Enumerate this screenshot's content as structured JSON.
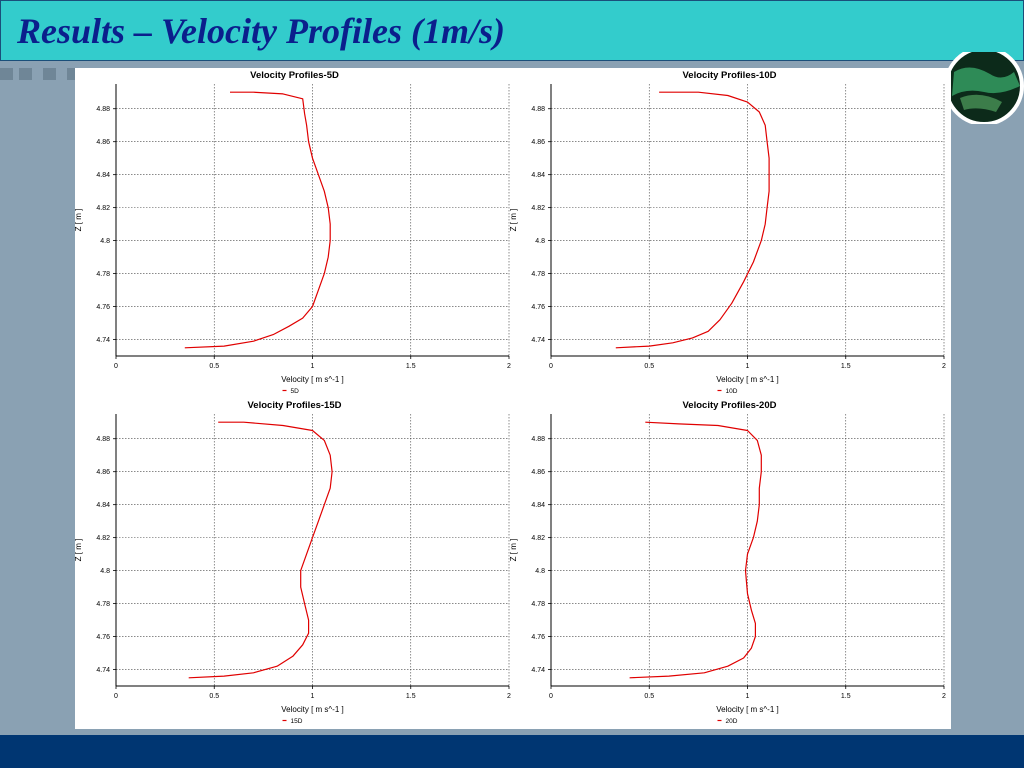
{
  "slide": {
    "title": "Results – Velocity Profiles (1m/s)"
  },
  "colors": {
    "title_bar": "#33cccc",
    "title_text": "#0b1f8c",
    "background": "#8aa1b3",
    "bottom_bar": "#003672",
    "series": "#e00000"
  },
  "chart_data": [
    {
      "type": "line",
      "title": "Velocity Profiles-5D",
      "xlabel": "Velocity [ m s^-1 ]",
      "ylabel": "Z [ m ]",
      "xlim": [
        0,
        2
      ],
      "ylim": [
        4.73,
        4.895
      ],
      "xticks": [
        0,
        0.5,
        1,
        1.5,
        2
      ],
      "xtick_labels": [
        "0",
        "0.5",
        "1",
        "1.5",
        "2"
      ],
      "yticks": [
        4.74,
        4.76,
        4.78,
        4.8,
        4.82,
        4.84,
        4.86,
        4.88
      ],
      "ytick_labels": [
        "4.74",
        "4.76",
        "4.78",
        "4.8",
        "4.82",
        "4.84",
        "4.86",
        "4.88"
      ],
      "grid": true,
      "legend_position": "bottom",
      "series": [
        {
          "name": "5D",
          "x": [
            0.35,
            0.55,
            0.7,
            0.8,
            0.88,
            0.95,
            1.0,
            1.03,
            1.06,
            1.08,
            1.09,
            1.09,
            1.08,
            1.06,
            1.03,
            1.0,
            0.98,
            0.97,
            0.96,
            0.95,
            0.85,
            0.7,
            0.58
          ],
          "y": [
            4.735,
            4.736,
            4.739,
            4.743,
            4.748,
            4.753,
            4.76,
            4.77,
            4.78,
            4.79,
            4.8,
            4.81,
            4.82,
            4.83,
            4.84,
            4.85,
            4.86,
            4.87,
            4.877,
            4.886,
            4.889,
            4.89,
            4.89
          ]
        }
      ]
    },
    {
      "type": "line",
      "title": "Velocity Profiles-10D",
      "xlabel": "Velocity [ m s^-1 ]",
      "ylabel": "Z [ m ]",
      "xlim": [
        0,
        2
      ],
      "ylim": [
        4.73,
        4.895
      ],
      "xticks": [
        0,
        0.5,
        1,
        1.5,
        2
      ],
      "xtick_labels": [
        "0",
        "0.5",
        "1",
        "1.5",
        "2"
      ],
      "yticks": [
        4.74,
        4.76,
        4.78,
        4.8,
        4.82,
        4.84,
        4.86,
        4.88
      ],
      "ytick_labels": [
        "4.74",
        "4.76",
        "4.78",
        "4.8",
        "4.82",
        "4.84",
        "4.86",
        "4.88"
      ],
      "grid": true,
      "legend_position": "bottom",
      "series": [
        {
          "name": "10D",
          "x": [
            0.33,
            0.5,
            0.62,
            0.72,
            0.8,
            0.86,
            0.92,
            0.98,
            1.03,
            1.07,
            1.09,
            1.1,
            1.11,
            1.11,
            1.11,
            1.1,
            1.09,
            1.06,
            1.0,
            0.9,
            0.75,
            0.55
          ],
          "y": [
            4.735,
            4.736,
            4.738,
            4.741,
            4.745,
            4.752,
            4.762,
            4.775,
            4.787,
            4.8,
            4.81,
            4.82,
            4.83,
            4.84,
            4.85,
            4.86,
            4.87,
            4.878,
            4.884,
            4.888,
            4.89,
            4.89
          ]
        }
      ]
    },
    {
      "type": "line",
      "title": "Velocity Profiles-15D",
      "xlabel": "Velocity [ m s^-1 ]",
      "ylabel": "Z [ m ]",
      "xlim": [
        0,
        2
      ],
      "ylim": [
        4.73,
        4.895
      ],
      "xticks": [
        0,
        0.5,
        1,
        1.5,
        2
      ],
      "xtick_labels": [
        "0",
        "0.5",
        "1",
        "1.5",
        "2"
      ],
      "yticks": [
        4.74,
        4.76,
        4.78,
        4.8,
        4.82,
        4.84,
        4.86,
        4.88
      ],
      "ytick_labels": [
        "4.74",
        "4.76",
        "4.78",
        "4.8",
        "4.82",
        "4.84",
        "4.86",
        "4.88"
      ],
      "grid": true,
      "legend_position": "bottom",
      "series": [
        {
          "name": "15D",
          "x": [
            0.37,
            0.55,
            0.7,
            0.82,
            0.9,
            0.95,
            0.98,
            0.98,
            0.96,
            0.94,
            0.94,
            0.97,
            1.0,
            1.03,
            1.06,
            1.09,
            1.1,
            1.09,
            1.06,
            1.0,
            0.85,
            0.65,
            0.52
          ],
          "y": [
            4.735,
            4.736,
            4.738,
            4.742,
            4.748,
            4.755,
            4.762,
            4.77,
            4.78,
            4.79,
            4.8,
            4.81,
            4.82,
            4.83,
            4.84,
            4.85,
            4.86,
            4.87,
            4.879,
            4.885,
            4.888,
            4.89,
            4.89
          ]
        }
      ]
    },
    {
      "type": "line",
      "title": "Velocity Profiles-20D",
      "xlabel": "Velocity [ m s^-1 ]",
      "ylabel": "Z [ m ]",
      "xlim": [
        0,
        2
      ],
      "ylim": [
        4.73,
        4.895
      ],
      "xticks": [
        0,
        0.5,
        1,
        1.5,
        2
      ],
      "xtick_labels": [
        "0",
        "0.5",
        "1",
        "1.5",
        "2"
      ],
      "yticks": [
        4.74,
        4.76,
        4.78,
        4.8,
        4.82,
        4.84,
        4.86,
        4.88
      ],
      "ytick_labels": [
        "4.74",
        "4.76",
        "4.78",
        "4.8",
        "4.82",
        "4.84",
        "4.86",
        "4.88"
      ],
      "grid": true,
      "legend_position": "bottom",
      "series": [
        {
          "name": "20D",
          "x": [
            0.4,
            0.6,
            0.78,
            0.9,
            0.98,
            1.02,
            1.04,
            1.04,
            1.02,
            1.0,
            0.99,
            1.0,
            1.03,
            1.05,
            1.06,
            1.06,
            1.07,
            1.07,
            1.05,
            1.0,
            0.85,
            0.65,
            0.48
          ],
          "y": [
            4.735,
            4.736,
            4.738,
            4.742,
            4.747,
            4.753,
            4.76,
            4.768,
            4.776,
            4.786,
            4.8,
            4.81,
            4.82,
            4.83,
            4.84,
            4.85,
            4.86,
            4.87,
            4.879,
            4.885,
            4.888,
            4.889,
            4.89
          ]
        }
      ]
    }
  ]
}
